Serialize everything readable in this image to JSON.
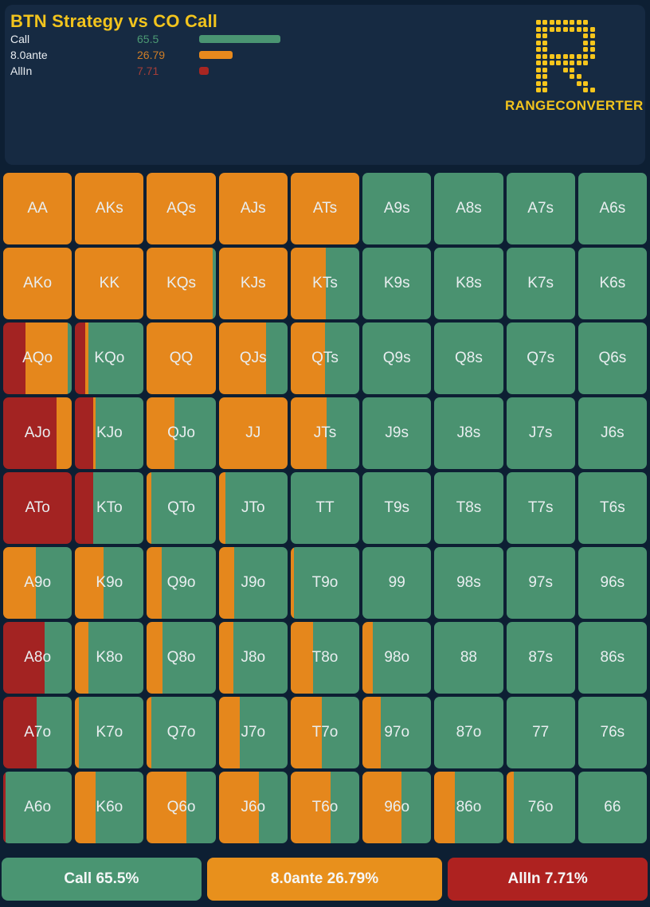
{
  "header": {
    "title": "BTN Strategy vs CO Call",
    "logo_text": "RANGECONVERTER",
    "legend": [
      {
        "id": "call",
        "label": "Call",
        "value": "65.5",
        "value_num": 65.5,
        "value_color": "#4c9a74",
        "bar_color": "#4a9572"
      },
      {
        "id": "ante",
        "label": "8.0ante",
        "value": "26.79",
        "value_num": 26.79,
        "value_color": "#cf7d26",
        "bar_color": "#e8891d"
      },
      {
        "id": "allin",
        "label": "AllIn",
        "value": "7.71",
        "value_num": 7.71,
        "value_color": "#a43e38",
        "bar_color": "#a82622"
      }
    ]
  },
  "colors": {
    "call": "#4a9270",
    "ante": "#e5871c",
    "allin": "#a32322",
    "accent_yellow": "#f2c41d",
    "header_bg": "#162a42",
    "page_bg": "#0d1f33",
    "cell_text": "#e9eef0"
  },
  "grid": {
    "cells": [
      {
        "label": "AA",
        "ante": 100
      },
      {
        "label": "AKs",
        "ante": 100
      },
      {
        "label": "AQs",
        "ante": 100
      },
      {
        "label": "AJs",
        "ante": 100
      },
      {
        "label": "ATs",
        "ante": 100
      },
      {
        "label": "A9s",
        "call": 100
      },
      {
        "label": "A8s",
        "call": 100
      },
      {
        "label": "A7s",
        "call": 100
      },
      {
        "label": "A6s",
        "call": 100
      },
      {
        "label": "AKo",
        "ante": 100
      },
      {
        "label": "KK",
        "ante": 100
      },
      {
        "label": "KQs",
        "ante": 96,
        "call": 4
      },
      {
        "label": "KJs",
        "ante": 100
      },
      {
        "label": "KTs",
        "ante": 51,
        "call": 49
      },
      {
        "label": "K9s",
        "call": 100
      },
      {
        "label": "K8s",
        "call": 100
      },
      {
        "label": "K7s",
        "call": 100
      },
      {
        "label": "K6s",
        "call": 100
      },
      {
        "label": "AQo",
        "allin": 32,
        "ante": 62,
        "call": 6
      },
      {
        "label": "KQo",
        "allin": 15,
        "ante": 4,
        "call": 81
      },
      {
        "label": "QQ",
        "ante": 100
      },
      {
        "label": "QJs",
        "ante": 69,
        "call": 31
      },
      {
        "label": "QTs",
        "ante": 50,
        "call": 50
      },
      {
        "label": "Q9s",
        "call": 100
      },
      {
        "label": "Q8s",
        "call": 100
      },
      {
        "label": "Q7s",
        "call": 100
      },
      {
        "label": "Q6s",
        "call": 100
      },
      {
        "label": "AJo",
        "allin": 78,
        "ante": 22
      },
      {
        "label": "KJo",
        "allin": 27,
        "ante": 3,
        "call": 70
      },
      {
        "label": "QJo",
        "ante": 40,
        "call": 60
      },
      {
        "label": "JJ",
        "ante": 100
      },
      {
        "label": "JTs",
        "ante": 52,
        "call": 48
      },
      {
        "label": "J9s",
        "call": 100
      },
      {
        "label": "J8s",
        "call": 100
      },
      {
        "label": "J7s",
        "call": 100
      },
      {
        "label": "J6s",
        "call": 100
      },
      {
        "label": "ATo",
        "allin": 100
      },
      {
        "label": "KTo",
        "allin": 27,
        "call": 73
      },
      {
        "label": "QTo",
        "ante": 6,
        "call": 94
      },
      {
        "label": "JTo",
        "ante": 10,
        "call": 90
      },
      {
        "label": "TT",
        "call": 100
      },
      {
        "label": "T9s",
        "call": 100
      },
      {
        "label": "T8s",
        "call": 100
      },
      {
        "label": "T7s",
        "call": 100
      },
      {
        "label": "T6s",
        "call": 100
      },
      {
        "label": "A9o",
        "ante": 47,
        "call": 53
      },
      {
        "label": "K9o",
        "ante": 41,
        "call": 59
      },
      {
        "label": "Q9o",
        "ante": 22,
        "call": 78
      },
      {
        "label": "J9o",
        "ante": 23,
        "call": 77
      },
      {
        "label": "T9o",
        "ante": 5,
        "call": 95
      },
      {
        "label": "99",
        "call": 100
      },
      {
        "label": "98s",
        "call": 100
      },
      {
        "label": "97s",
        "call": 100
      },
      {
        "label": "96s",
        "call": 100
      },
      {
        "label": "A8o",
        "allin": 60,
        "call": 40
      },
      {
        "label": "K8o",
        "ante": 20,
        "call": 80
      },
      {
        "label": "Q8o",
        "ante": 23,
        "call": 77
      },
      {
        "label": "J8o",
        "ante": 21,
        "call": 79
      },
      {
        "label": "T8o",
        "ante": 33,
        "call": 67
      },
      {
        "label": "98o",
        "ante": 15,
        "call": 85
      },
      {
        "label": "88",
        "call": 100
      },
      {
        "label": "87s",
        "call": 100
      },
      {
        "label": "86s",
        "call": 100
      },
      {
        "label": "A7o",
        "allin": 49,
        "call": 51
      },
      {
        "label": "K7o",
        "ante": 5,
        "call": 95
      },
      {
        "label": "Q7o",
        "ante": 6,
        "call": 94
      },
      {
        "label": "J7o",
        "ante": 30,
        "call": 70
      },
      {
        "label": "T7o",
        "ante": 45,
        "call": 55
      },
      {
        "label": "97o",
        "ante": 26,
        "call": 74
      },
      {
        "label": "87o",
        "call": 100
      },
      {
        "label": "77",
        "call": 100
      },
      {
        "label": "76s",
        "call": 100
      },
      {
        "label": "A6o",
        "allin": 4,
        "call": 96
      },
      {
        "label": "K6o",
        "ante": 30,
        "call": 70
      },
      {
        "label": "Q6o",
        "ante": 58,
        "call": 42
      },
      {
        "label": "J6o",
        "ante": 58,
        "call": 42
      },
      {
        "label": "T6o",
        "ante": 58,
        "call": 42
      },
      {
        "label": "96o",
        "ante": 57,
        "call": 43
      },
      {
        "label": "86o",
        "ante": 30,
        "call": 70
      },
      {
        "label": "76o",
        "ante": 11,
        "call": 89
      },
      {
        "label": "66",
        "call": 100
      }
    ]
  },
  "footer": {
    "buttons": [
      {
        "id": "call",
        "label": "Call 65.5%",
        "color": "#4a9572",
        "flex": 250
      },
      {
        "id": "ante",
        "label": "8.0ante 26.79%",
        "color": "#e8901c",
        "flex": 297
      },
      {
        "id": "allin",
        "label": "AllIn 7.71%",
        "color": "#ae2220",
        "flex": 250
      }
    ]
  }
}
